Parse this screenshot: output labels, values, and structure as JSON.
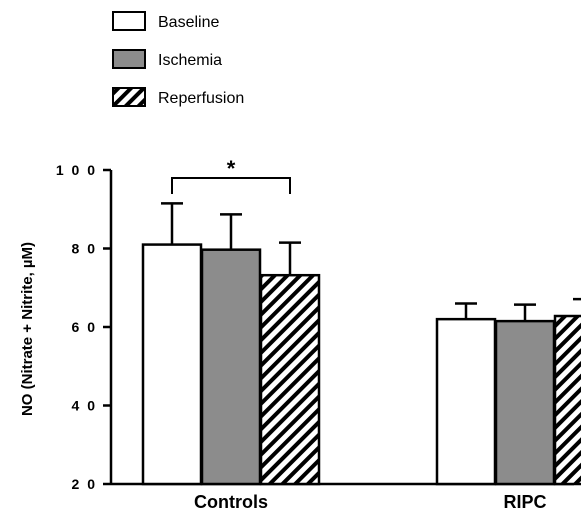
{
  "chart_data": {
    "type": "bar",
    "title": "",
    "xlabel": "",
    "ylabel": "NO (Nitrate + Nitrite, µM)",
    "ylim": [
      20,
      100
    ],
    "yticks": [
      "2 0",
      "4 0",
      "6 0",
      "8 0",
      "1 0 0"
    ],
    "ytick_values": [
      20,
      40,
      60,
      80,
      100
    ],
    "categories": [
      "Controls",
      "RIPC"
    ],
    "series": [
      {
        "name": "Baseline",
        "fill": "white",
        "values": [
          81,
          62
        ],
        "errors": [
          10.5,
          4
        ]
      },
      {
        "name": "Ischemia",
        "fill": "gray",
        "values": [
          79.7,
          61.5
        ],
        "errors": [
          9,
          4.2
        ]
      },
      {
        "name": "Reperfusion",
        "fill": "hatched",
        "values": [
          73.2,
          62.8
        ],
        "errors": [
          8.3,
          4.3
        ]
      }
    ],
    "legend_position": "top-left",
    "significance": {
      "label": "*",
      "category": "Controls",
      "from_series": "Baseline",
      "to_series": "Reperfusion"
    },
    "grid": false
  },
  "colors": {
    "gray_bar": "#8c8c8c",
    "outline": "#000000",
    "background": "#ffffff"
  }
}
